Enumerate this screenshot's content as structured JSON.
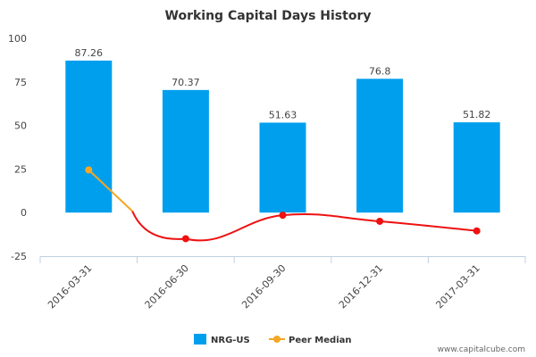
{
  "chart_data": {
    "type": "bar",
    "title": "Working Capital Days History",
    "categories": [
      "2016-03-31",
      "2016-06-30",
      "2016-09-30",
      "2016-12-31",
      "2017-03-31"
    ],
    "ylim": [
      -25,
      100
    ],
    "yticks": [
      100,
      75,
      50,
      25,
      0,
      -25
    ],
    "grid": false,
    "legend_position": "bottom",
    "series": [
      {
        "name": "NRG-US",
        "type": "bar",
        "color": "#009FEE",
        "values": [
          87.26,
          70.37,
          51.63,
          76.8,
          51.82
        ],
        "labels": [
          "87.26",
          "70.37",
          "51.63",
          "76.8",
          "51.82"
        ]
      },
      {
        "name": "Peer Median",
        "type": "line",
        "color": "#F5A623",
        "point_colors": [
          "#F5A623",
          "#EE1111",
          "#EE1111",
          "#EE1111",
          "#EE1111"
        ],
        "line_colors": [
          "#F5A623",
          "#EE1111"
        ],
        "values": [
          24.5,
          -15.0,
          -1.5,
          -5.0,
          -10.5
        ]
      }
    ]
  },
  "watermark": "www.capitalcube.com"
}
